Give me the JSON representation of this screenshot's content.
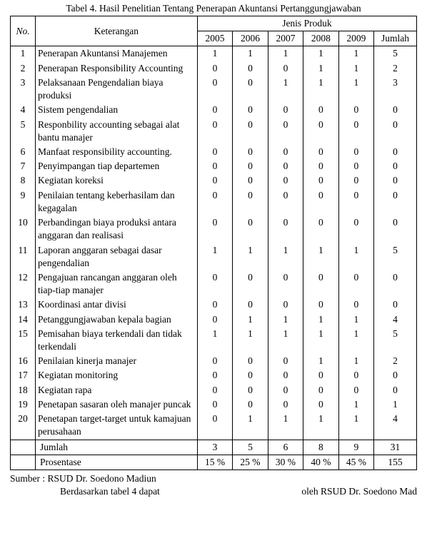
{
  "title": "Tabel 4. Hasil Penelitian Tentang Penerapan Akuntansi Pertanggungjawaban",
  "headers": {
    "no": "No.",
    "keterangan": "Keterangan",
    "jenisProduk": "Jenis Produk",
    "years": [
      "2005",
      "2006",
      "2007",
      "2008",
      "2009"
    ],
    "jumlah": "Jumlah"
  },
  "rows": [
    {
      "no": "1",
      "ket": "Penerapan Akuntansi Manajemen",
      "v": [
        "1",
        "1",
        "1",
        "1",
        "1",
        "5"
      ]
    },
    {
      "no": "2",
      "ket": "Penerapan Responsibility Accounting",
      "v": [
        "0",
        "0",
        "0",
        "1",
        "1",
        "2"
      ]
    },
    {
      "no": "3",
      "ket": "Pelaksanaan Pengendalian biaya produksi",
      "v": [
        "0",
        "0",
        "1",
        "1",
        "1",
        "3"
      ]
    },
    {
      "no": "4",
      "ket": "Sistem pengendalian",
      "v": [
        "0",
        "0",
        "0",
        "0",
        "0",
        "0"
      ]
    },
    {
      "no": "5",
      "ket": "Responbility accounting sebagai alat bantu manajer",
      "v": [
        "0",
        "0",
        "0",
        "0",
        "0",
        "0"
      ]
    },
    {
      "no": "6",
      "ket": "Manfaat responsibility accounting.",
      "v": [
        "0",
        "0",
        "0",
        "0",
        "0",
        "0"
      ]
    },
    {
      "no": "7",
      "ket": "Penyimpangan tiap departemen",
      "v": [
        "0",
        "0",
        "0",
        "0",
        "0",
        "0"
      ]
    },
    {
      "no": "8",
      "ket": "Kegiatan koreksi",
      "v": [
        "0",
        "0",
        "0",
        "0",
        "0",
        "0"
      ]
    },
    {
      "no": "9",
      "ket": "Penilaian tentang keberhasilam dan kegagalan",
      "v": [
        "0",
        "0",
        "0",
        "0",
        "0",
        "0"
      ]
    },
    {
      "no": "10",
      "ket": "Perbandingan biaya produksi antara anggaran dan realisasi",
      "v": [
        "0",
        "0",
        "0",
        "0",
        "0",
        "0"
      ]
    },
    {
      "no": "11",
      "ket": "Laporan anggaran sebagai dasar pengendalian",
      "v": [
        "1",
        "1",
        "1",
        "1",
        "1",
        "5"
      ]
    },
    {
      "no": "12",
      "ket": "Pengajuan rancangan anggaran oleh tiap-tiap manajer",
      "v": [
        "0",
        "0",
        "0",
        "0",
        "0",
        "0"
      ]
    },
    {
      "no": "13",
      "ket": "Koordinasi antar divisi",
      "v": [
        "0",
        "0",
        "0",
        "0",
        "0",
        "0"
      ]
    },
    {
      "no": "14",
      "ket": "Petanggungjawaban kepala bagian",
      "v": [
        "0",
        "1",
        "1",
        "1",
        "1",
        "4"
      ]
    },
    {
      "no": "15",
      "ket": "Pemisahan biaya terkendali dan tidak terkendali",
      "v": [
        "1",
        "1",
        "1",
        "1",
        "1",
        "5"
      ]
    },
    {
      "no": "16",
      "ket": "Penilaian kinerja manajer",
      "v": [
        "0",
        "0",
        "0",
        "1",
        "1",
        "2"
      ]
    },
    {
      "no": "17",
      "ket": "Kegiatan monitoring",
      "v": [
        "0",
        "0",
        "0",
        "0",
        "0",
        "0"
      ]
    },
    {
      "no": "18",
      "ket": "Kegiatan rapa",
      "v": [
        "0",
        "0",
        "0",
        "0",
        "0",
        "0"
      ]
    },
    {
      "no": "19",
      "ket": "Penetapan sasaran oleh manajer puncak",
      "v": [
        "0",
        "0",
        "0",
        "0",
        "1",
        "1"
      ]
    },
    {
      "no": "20",
      "ket": "Penetapan target-target untuk kamajuan perusahaan",
      "v": [
        "0",
        "1",
        "1",
        "1",
        "1",
        "4"
      ]
    }
  ],
  "summary": {
    "jumlah": {
      "label": "Jumlah",
      "v": [
        "3",
        "5",
        "6",
        "8",
        "9",
        "31"
      ]
    },
    "prosen": {
      "label": "Prosentase",
      "v": [
        "15 %",
        "25 %",
        "30 %",
        "40 %",
        "45 %",
        "155"
      ]
    }
  },
  "source": "Sumber : RSUD Dr. Soedono Madiun",
  "bottomLeft": "Berdasarkan  tabel  4  dapat",
  "bottomRight": "oleh RSUD Dr. Soedono Mad"
}
